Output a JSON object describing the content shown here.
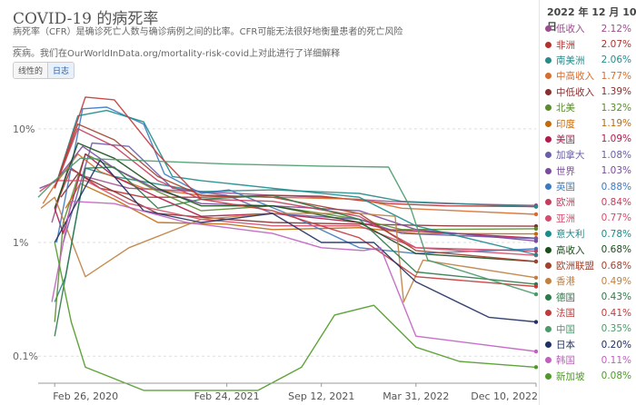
{
  "header": {
    "title": "COVID-19 的病死率",
    "subtitle_line1": "病死率（CFR）是确诊死亡人数与确诊病例之间的比率。CFR可能无法很好地衡量患者的死亡风险___",
    "subtitle_line2": "疾病。我们在OurWorldInData.org/mortality-risk-covid上对此进行了详细解释"
  },
  "scale_toggle": {
    "linear_label": "线性的",
    "log_label": "日志",
    "selected": "log"
  },
  "legend": {
    "date_label": "2022 年 12 月 10 日"
  },
  "chart_data": {
    "type": "line",
    "y_scale": "log",
    "ylim": [
      0.06,
      25
    ],
    "yticks": [
      {
        "value": 0.1,
        "label": "0.1%"
      },
      {
        "value": 1,
        "label": "1%"
      },
      {
        "value": 10,
        "label": "10%"
      }
    ],
    "xlim": [
      "2020-01-22",
      "2022-12-10"
    ],
    "xticks": [
      {
        "date": "2020-02-26",
        "label": "Feb 26, 2020"
      },
      {
        "date": "2021-02-24",
        "label": "Feb 24, 2021"
      },
      {
        "date": "2021-09-12",
        "label": "Sep 12, 2021"
      },
      {
        "date": "2022-03-31",
        "label": "Mar 31, 2022"
      },
      {
        "date": "2022-12-10",
        "label": "Dec 10, 2022"
      }
    ],
    "grid": "horizontal",
    "series": [
      {
        "name": "低收入",
        "value_label": "2.12%",
        "color": "#9a4f8c",
        "points": [
          [
            "2020-02-20",
            1.5
          ],
          [
            "2020-03-25",
            4.5
          ],
          [
            "2020-05-01",
            3.8
          ],
          [
            "2020-08-01",
            3.0
          ],
          [
            "2021-01-01",
            2.8
          ],
          [
            "2021-06-01",
            2.6
          ],
          [
            "2021-09-12",
            2.5
          ],
          [
            "2022-02-01",
            2.3
          ],
          [
            "2022-06-01",
            2.2
          ],
          [
            "2022-12-10",
            2.12
          ]
        ]
      },
      {
        "name": "非洲",
        "value_label": "2.07%",
        "color": "#b2312d",
        "points": [
          [
            "2020-02-26",
            2.0
          ],
          [
            "2020-04-01",
            4.5
          ],
          [
            "2020-06-01",
            3.0
          ],
          [
            "2020-09-01",
            2.5
          ],
          [
            "2021-01-01",
            2.5
          ],
          [
            "2021-06-01",
            2.6
          ],
          [
            "2021-09-12",
            2.55
          ],
          [
            "2022-02-01",
            2.2
          ],
          [
            "2022-06-01",
            2.1
          ],
          [
            "2022-12-10",
            2.07
          ]
        ]
      },
      {
        "name": "南美洲",
        "value_label": "2.06%",
        "color": "#2a8a8a",
        "points": [
          [
            "2020-02-26",
            0.3
          ],
          [
            "2020-03-20",
            0.5
          ],
          [
            "2020-05-01",
            4.5
          ],
          [
            "2020-07-01",
            3.8
          ],
          [
            "2021-01-01",
            2.8
          ],
          [
            "2021-06-01",
            2.9
          ],
          [
            "2021-12-01",
            2.7
          ],
          [
            "2022-03-01",
            2.3
          ],
          [
            "2022-12-10",
            2.06
          ]
        ]
      },
      {
        "name": "中高收入",
        "value_label": "1.77%",
        "color": "#d86c2c",
        "points": [
          [
            "2020-02-01",
            2.2
          ],
          [
            "2020-02-26",
            3.2
          ],
          [
            "2020-04-15",
            6.0
          ],
          [
            "2020-06-01",
            4.2
          ],
          [
            "2020-09-01",
            3.0
          ],
          [
            "2021-01-01",
            2.6
          ],
          [
            "2021-06-01",
            2.5
          ],
          [
            "2021-12-01",
            2.4
          ],
          [
            "2022-03-01",
            2.0
          ],
          [
            "2022-12-10",
            1.77
          ]
        ]
      },
      {
        "name": "中低收入",
        "value_label": "1.39%",
        "color": "#883030",
        "points": [
          [
            "2020-03-10",
            2.5
          ],
          [
            "2020-04-15",
            4.0
          ],
          [
            "2020-07-01",
            2.8
          ],
          [
            "2020-10-01",
            1.8
          ],
          [
            "2021-02-24",
            1.6
          ],
          [
            "2021-06-01",
            1.5
          ],
          [
            "2021-12-01",
            1.45
          ],
          [
            "2022-06-01",
            1.4
          ],
          [
            "2022-12-10",
            1.39
          ]
        ]
      },
      {
        "name": "北美",
        "value_label": "1.32%",
        "color": "#598c2c",
        "points": [
          [
            "2020-02-26",
            0.2
          ],
          [
            "2020-03-15",
            1.5
          ],
          [
            "2020-05-01",
            6.0
          ],
          [
            "2020-07-01",
            4.5
          ],
          [
            "2020-10-01",
            2.8
          ],
          [
            "2021-01-01",
            1.9
          ],
          [
            "2021-06-01",
            2.1
          ],
          [
            "2021-12-01",
            1.6
          ],
          [
            "2022-03-01",
            1.3
          ],
          [
            "2022-12-10",
            1.32
          ]
        ]
      },
      {
        "name": "印度",
        "value_label": "1.19%",
        "color": "#c26a0c",
        "points": [
          [
            "2020-03-20",
            2.0
          ],
          [
            "2020-04-20",
            3.3
          ],
          [
            "2020-07-01",
            2.4
          ],
          [
            "2020-10-01",
            1.5
          ],
          [
            "2021-02-24",
            1.45
          ],
          [
            "2021-06-01",
            1.3
          ],
          [
            "2021-12-01",
            1.35
          ],
          [
            "2022-03-31",
            1.2
          ],
          [
            "2022-12-10",
            1.19
          ]
        ]
      },
      {
        "name": "美国",
        "value_label": "1.09%",
        "color": "#b11a4a",
        "points": [
          [
            "2020-02-26",
            2.0
          ],
          [
            "2020-03-15",
            1.2
          ],
          [
            "2020-05-01",
            6.0
          ],
          [
            "2020-07-01",
            3.8
          ],
          [
            "2020-10-01",
            2.5
          ],
          [
            "2021-01-01",
            1.7
          ],
          [
            "2021-06-01",
            1.8
          ],
          [
            "2021-12-01",
            1.5
          ],
          [
            "2022-02-01",
            1.3
          ],
          [
            "2022-12-10",
            1.09
          ]
        ]
      },
      {
        "name": "加拿大",
        "value_label": "1.08%",
        "color": "#6b5ea8",
        "points": [
          [
            "2020-03-15",
            1.0
          ],
          [
            "2020-05-15",
            7.5
          ],
          [
            "2020-08-01",
            7.0
          ],
          [
            "2020-11-01",
            3.0
          ],
          [
            "2021-02-24",
            2.6
          ],
          [
            "2021-06-01",
            1.8
          ],
          [
            "2021-12-01",
            1.6
          ],
          [
            "2022-03-01",
            1.2
          ],
          [
            "2022-12-10",
            1.08
          ]
        ]
      },
      {
        "name": "世界",
        "value_label": "1.03%",
        "color": "#7b4a9c",
        "points": [
          [
            "2020-01-25",
            3.0
          ],
          [
            "2020-02-26",
            3.4
          ],
          [
            "2020-04-25",
            7.0
          ],
          [
            "2020-07-01",
            4.5
          ],
          [
            "2020-10-01",
            2.9
          ],
          [
            "2021-01-01",
            2.2
          ],
          [
            "2021-06-01",
            2.1
          ],
          [
            "2021-12-01",
            1.9
          ],
          [
            "2022-03-31",
            1.3
          ],
          [
            "2022-12-10",
            1.03
          ]
        ]
      },
      {
        "name": "英国",
        "value_label": "0.88%",
        "color": "#3c7ac0",
        "points": [
          [
            "2020-03-01",
            1.0
          ],
          [
            "2020-04-25",
            15.0
          ],
          [
            "2020-06-15",
            15.5
          ],
          [
            "2020-09-01",
            11.0
          ],
          [
            "2020-10-15",
            4.0
          ],
          [
            "2021-01-01",
            2.7
          ],
          [
            "2021-03-01",
            2.9
          ],
          [
            "2021-07-01",
            1.8
          ],
          [
            "2021-12-01",
            0.9
          ],
          [
            "2022-03-31",
            0.8
          ],
          [
            "2022-12-10",
            0.88
          ]
        ]
      },
      {
        "name": "欧洲",
        "value_label": "0.84%",
        "color": "#c43d5e",
        "points": [
          [
            "2020-02-26",
            3.0
          ],
          [
            "2020-04-15",
            10.0
          ],
          [
            "2020-07-01",
            7.0
          ],
          [
            "2020-10-01",
            3.5
          ],
          [
            "2021-01-01",
            2.4
          ],
          [
            "2021-06-01",
            2.3
          ],
          [
            "2021-12-01",
            1.7
          ],
          [
            "2022-03-31",
            0.9
          ],
          [
            "2022-12-10",
            0.84
          ]
        ]
      },
      {
        "name": "亚洲",
        "value_label": "0.77%",
        "color": "#d74c6c",
        "points": [
          [
            "2020-01-25",
            2.8
          ],
          [
            "2020-02-26",
            3.5
          ],
          [
            "2020-05-01",
            3.5
          ],
          [
            "2020-08-01",
            2.2
          ],
          [
            "2021-01-01",
            1.6
          ],
          [
            "2021-06-01",
            1.4
          ],
          [
            "2021-12-01",
            1.4
          ],
          [
            "2022-03-31",
            0.9
          ],
          [
            "2022-12-10",
            0.77
          ]
        ]
      },
      {
        "name": "意大利",
        "value_label": "0.78%",
        "color": "#1b8b8b",
        "points": [
          [
            "2020-02-26",
            3.0
          ],
          [
            "2020-04-15",
            13.0
          ],
          [
            "2020-06-15",
            14.5
          ],
          [
            "2020-09-01",
            11.5
          ],
          [
            "2020-11-01",
            3.8
          ],
          [
            "2021-01-01",
            3.5
          ],
          [
            "2021-06-01",
            3.0
          ],
          [
            "2021-12-01",
            2.5
          ],
          [
            "2022-03-31",
            1.4
          ],
          [
            "2022-12-10",
            0.78
          ]
        ]
      },
      {
        "name": "高收入",
        "value_label": "0.68%",
        "color": "#1a4e1a",
        "points": [
          [
            "2020-02-26",
            2.0
          ],
          [
            "2020-04-15",
            7.5
          ],
          [
            "2020-07-01",
            5.5
          ],
          [
            "2020-10-01",
            3.0
          ],
          [
            "2021-01-01",
            2.1
          ],
          [
            "2021-06-01",
            2.1
          ],
          [
            "2021-12-01",
            1.5
          ],
          [
            "2022-03-31",
            0.8
          ],
          [
            "2022-12-10",
            0.68
          ]
        ]
      },
      {
        "name": "欧洲联盟",
        "value_label": "0.68%",
        "color": "#a4402e",
        "points": [
          [
            "2020-02-26",
            3.0
          ],
          [
            "2020-04-15",
            11.0
          ],
          [
            "2020-07-01",
            8.0
          ],
          [
            "2020-10-01",
            3.8
          ],
          [
            "2021-01-01",
            2.6
          ],
          [
            "2021-06-01",
            2.5
          ],
          [
            "2021-12-01",
            1.8
          ],
          [
            "2022-03-31",
            0.85
          ],
          [
            "2022-12-10",
            0.68
          ]
        ]
      },
      {
        "name": "香港",
        "value_label": "0.49%",
        "color": "#c08040",
        "points": [
          [
            "2020-01-28",
            2.0
          ],
          [
            "2020-02-26",
            2.5
          ],
          [
            "2020-05-01",
            0.5
          ],
          [
            "2020-08-01",
            0.9
          ],
          [
            "2021-01-01",
            1.6
          ],
          [
            "2021-06-01",
            1.8
          ],
          [
            "2021-12-01",
            1.8
          ],
          [
            "2022-02-15",
            1.7
          ],
          [
            "2022-03-05",
            0.3
          ],
          [
            "2022-04-15",
            0.7
          ],
          [
            "2022-12-10",
            0.49
          ]
        ]
      },
      {
        "name": "德国",
        "value_label": "0.43%",
        "color": "#2e7a4a",
        "points": [
          [
            "2020-02-26",
            0.15
          ],
          [
            "2020-03-10",
            0.3
          ],
          [
            "2020-05-01",
            4.5
          ],
          [
            "2020-07-01",
            4.6
          ],
          [
            "2020-10-01",
            2.0
          ],
          [
            "2021-01-01",
            2.4
          ],
          [
            "2021-06-01",
            2.6
          ],
          [
            "2021-12-01",
            1.6
          ],
          [
            "2022-03-31",
            0.55
          ],
          [
            "2022-12-10",
            0.43
          ]
        ]
      },
      {
        "name": "法国",
        "value_label": "0.41%",
        "color": "#c23a3a",
        "points": [
          [
            "2020-02-26",
            3.0
          ],
          [
            "2020-05-01",
            19.0
          ],
          [
            "2020-07-01",
            18.0
          ],
          [
            "2020-10-01",
            6.0
          ],
          [
            "2021-01-01",
            2.4
          ],
          [
            "2021-06-01",
            1.9
          ],
          [
            "2021-12-01",
            1.1
          ],
          [
            "2022-03-31",
            0.5
          ],
          [
            "2022-12-10",
            0.41
          ]
        ]
      },
      {
        "name": "中国",
        "value_label": "0.35%",
        "color": "#4a9a6a",
        "points": [
          [
            "2020-01-22",
            2.5
          ],
          [
            "2020-02-26",
            3.5
          ],
          [
            "2020-04-20",
            5.5
          ],
          [
            "2020-08-01",
            5.3
          ],
          [
            "2021-02-24",
            4.9
          ],
          [
            "2021-09-12",
            4.7
          ],
          [
            "2022-02-01",
            4.6
          ],
          [
            "2022-03-20",
            2.0
          ],
          [
            "2022-04-25",
            0.7
          ],
          [
            "2022-12-10",
            0.35
          ]
        ]
      },
      {
        "name": "日本",
        "value_label": "0.20%",
        "color": "#203060",
        "points": [
          [
            "2020-02-26",
            1.0
          ],
          [
            "2020-06-01",
            5.3
          ],
          [
            "2020-09-01",
            1.9
          ],
          [
            "2021-01-01",
            1.5
          ],
          [
            "2021-06-01",
            1.8
          ],
          [
            "2021-09-12",
            1.0
          ],
          [
            "2022-01-01",
            1.0
          ],
          [
            "2022-03-31",
            0.45
          ],
          [
            "2022-09-01",
            0.22
          ],
          [
            "2022-12-10",
            0.2
          ]
        ]
      },
      {
        "name": "韩国",
        "value_label": "0.11%",
        "color": "#c060c0",
        "points": [
          [
            "2020-02-20",
            0.3
          ],
          [
            "2020-04-01",
            2.3
          ],
          [
            "2020-07-01",
            2.2
          ],
          [
            "2020-12-01",
            1.5
          ],
          [
            "2021-06-01",
            1.2
          ],
          [
            "2021-09-12",
            0.9
          ],
          [
            "2021-12-10",
            0.85
          ],
          [
            "2022-01-15",
            0.9
          ],
          [
            "2022-03-31",
            0.15
          ],
          [
            "2022-12-10",
            0.11
          ]
        ]
      },
      {
        "name": "新加坡",
        "value_label": "0.08%",
        "color": "#4e9a26",
        "points": [
          [
            "2020-02-26",
            1.0
          ],
          [
            "2020-04-01",
            0.2
          ],
          [
            "2020-05-01",
            0.08
          ],
          [
            "2020-09-01",
            0.05
          ],
          [
            "2021-05-01",
            0.05
          ],
          [
            "2021-08-01",
            0.08
          ],
          [
            "2021-10-10",
            0.23
          ],
          [
            "2022-01-01",
            0.28
          ],
          [
            "2022-03-31",
            0.12
          ],
          [
            "2022-07-01",
            0.09
          ],
          [
            "2022-12-10",
            0.08
          ]
        ]
      }
    ]
  }
}
